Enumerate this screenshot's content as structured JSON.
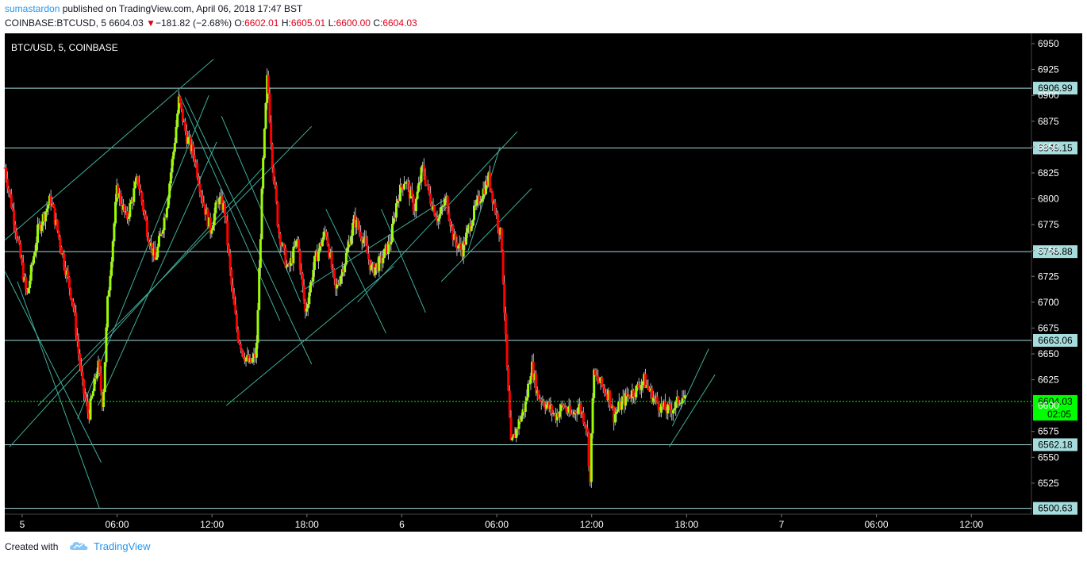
{
  "header": {
    "publisher": "sumastardon",
    "published_text": " published on TradingView.com, April 06, 2018 17:47 BST",
    "symbol": "COINBASE:BTCUSD, 5",
    "last": "6604.03",
    "change_arrow": "▼",
    "change": "−181.82 (−2.68%)",
    "o_label": "O:",
    "o_val": "6602.01",
    "h_label": "H:",
    "h_val": "6605.01",
    "l_label": "L:",
    "l_val": "6600.00",
    "c_label": "C:",
    "c_val": "6604.03"
  },
  "footer": {
    "created_with": "Created with",
    "brand": "TradingView",
    "brand_icon": "tradingview-cloud-icon"
  },
  "colors": {
    "background": "#000000",
    "up": "#9efb03",
    "down": "#ff0000",
    "wick": "#b7b7b7",
    "hline": "#a6dcdc",
    "trend": "#3fae98",
    "last_price": "#00ff00",
    "label_bg": "#a6dcdc",
    "axis_text": "#ffffff",
    "red_text": "#e0001b",
    "brand": "#2196f3"
  },
  "chart_data": {
    "type": "candlestick",
    "title": "BTC/USD, 5, COINBASE",
    "y_ticks": [
      6525,
      6550,
      6575,
      6600,
      6625,
      6650,
      6675,
      6700,
      6725,
      6750,
      6775,
      6800,
      6825,
      6850,
      6875,
      6900,
      6925,
      6950
    ],
    "ylim": [
      6495,
      6960
    ],
    "x_ticks": [
      {
        "label": "5",
        "t": 0
      },
      {
        "label": "06:00",
        "t": 6
      },
      {
        "label": "12:00",
        "t": 12
      },
      {
        "label": "18:00",
        "t": 18
      },
      {
        "label": "6",
        "t": 24
      },
      {
        "label": "06:00",
        "t": 30
      },
      {
        "label": "12:00",
        "t": 36
      },
      {
        "label": "18:00",
        "t": 42
      },
      {
        "label": "7",
        "t": 48
      },
      {
        "label": "06:00",
        "t": 54
      },
      {
        "label": "12:00",
        "t": 60
      }
    ],
    "xlim_hours": [
      -1.1,
      63.8
    ],
    "levels": [
      6906.99,
      6849.15,
      6748.88,
      6663.06,
      6562.18,
      6500.63
    ],
    "last_price": 6604.03,
    "countdown": "02:05",
    "price_path": [
      [
        -1.1,
        6830
      ],
      [
        -0.5,
        6780
      ],
      [
        0.3,
        6705
      ],
      [
        1.0,
        6770
      ],
      [
        1.8,
        6800
      ],
      [
        2.5,
        6750
      ],
      [
        3.2,
        6700
      ],
      [
        3.8,
        6620
      ],
      [
        4.2,
        6590
      ],
      [
        4.8,
        6640
      ],
      [
        5.1,
        6600
      ],
      [
        5.4,
        6700
      ],
      [
        6.0,
        6810
      ],
      [
        6.6,
        6780
      ],
      [
        7.3,
        6820
      ],
      [
        7.9,
        6770
      ],
      [
        8.4,
        6740
      ],
      [
        9.1,
        6790
      ],
      [
        9.6,
        6850
      ],
      [
        9.9,
        6895
      ],
      [
        10.4,
        6860
      ],
      [
        10.9,
        6840
      ],
      [
        11.4,
        6800
      ],
      [
        11.9,
        6770
      ],
      [
        12.4,
        6800
      ],
      [
        12.8,
        6790
      ],
      [
        13.2,
        6720
      ],
      [
        13.6,
        6670
      ],
      [
        14.0,
        6650
      ],
      [
        14.4,
        6640
      ],
      [
        14.8,
        6650
      ],
      [
        15.2,
        6825
      ],
      [
        15.5,
        6920
      ],
      [
        15.8,
        6840
      ],
      [
        16.2,
        6770
      ],
      [
        16.8,
        6730
      ],
      [
        17.4,
        6760
      ],
      [
        17.9,
        6690
      ],
      [
        18.5,
        6740
      ],
      [
        19.2,
        6770
      ],
      [
        19.8,
        6710
      ],
      [
        20.4,
        6740
      ],
      [
        21.0,
        6780
      ],
      [
        21.6,
        6760
      ],
      [
        22.1,
        6730
      ],
      [
        22.7,
        6740
      ],
      [
        23.3,
        6760
      ],
      [
        23.7,
        6800
      ],
      [
        24.2,
        6820
      ],
      [
        24.8,
        6790
      ],
      [
        25.3,
        6830
      ],
      [
        25.8,
        6800
      ],
      [
        26.3,
        6780
      ],
      [
        26.8,
        6800
      ],
      [
        27.3,
        6760
      ],
      [
        27.8,
        6750
      ],
      [
        28.4,
        6780
      ],
      [
        28.9,
        6800
      ],
      [
        29.5,
        6820
      ],
      [
        29.9,
        6790
      ],
      [
        30.3,
        6760
      ],
      [
        30.6,
        6650
      ],
      [
        30.9,
        6560
      ],
      [
        31.3,
        6580
      ],
      [
        31.8,
        6600
      ],
      [
        32.2,
        6640
      ],
      [
        32.6,
        6610
      ],
      [
        33.2,
        6600
      ],
      [
        33.7,
        6590
      ],
      [
        34.2,
        6600
      ],
      [
        34.7,
        6590
      ],
      [
        35.2,
        6600
      ],
      [
        35.7,
        6580
      ],
      [
        35.9,
        6525
      ],
      [
        36.1,
        6630
      ],
      [
        36.6,
        6620
      ],
      [
        37.1,
        6610
      ],
      [
        37.4,
        6590
      ],
      [
        37.8,
        6600
      ],
      [
        38.3,
        6610
      ],
      [
        38.8,
        6615
      ],
      [
        39.3,
        6625
      ],
      [
        39.8,
        6610
      ],
      [
        40.3,
        6600
      ],
      [
        40.8,
        6595
      ],
      [
        41.3,
        6600
      ],
      [
        41.7,
        6610
      ],
      [
        41.9,
        6604
      ]
    ],
    "trend_lines": [
      [
        -1.1,
        6760,
        12.1,
        6935
      ],
      [
        -1.1,
        6730,
        5.0,
        6545
      ],
      [
        -0.3,
        6720,
        4.9,
        6500
      ],
      [
        -0.8,
        6560,
        15.2,
        6830
      ],
      [
        1.0,
        6600,
        18.3,
        6870
      ],
      [
        3.5,
        6587,
        11.8,
        6900
      ],
      [
        4.8,
        6600,
        12.3,
        6855
      ],
      [
        9.9,
        6902,
        16.3,
        6682
      ],
      [
        10.3,
        6898,
        18.3,
        6640
      ],
      [
        12.9,
        6600,
        23.5,
        6735
      ],
      [
        12.6,
        6880,
        17.6,
        6700
      ],
      [
        17.6,
        6710,
        26.8,
        6800
      ],
      [
        19.2,
        6790,
        23.0,
        6670
      ],
      [
        22.7,
        6790,
        25.5,
        6690
      ],
      [
        21.2,
        6700,
        31.3,
        6865
      ],
      [
        26.5,
        6720,
        32.2,
        6810
      ],
      [
        28.2,
        6750,
        30.2,
        6850
      ],
      [
        41.1,
        6580,
        43.4,
        6655
      ],
      [
        40.9,
        6560,
        43.8,
        6630
      ]
    ]
  }
}
